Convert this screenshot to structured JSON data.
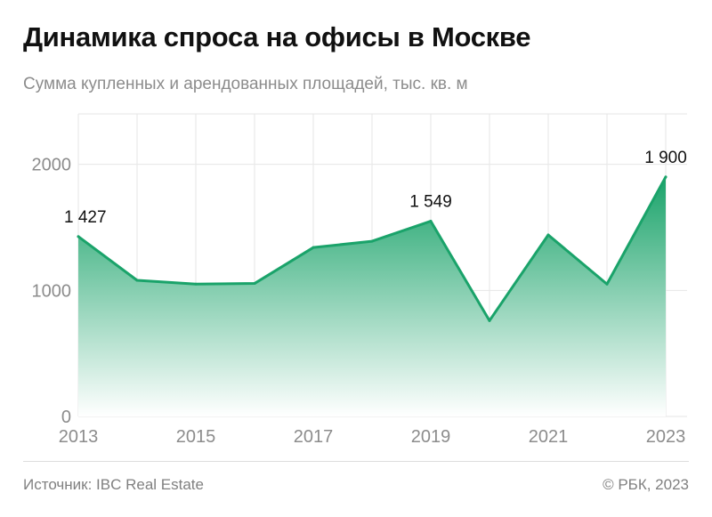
{
  "header": {
    "title": "Динамика спроса на офисы в Москве",
    "subtitle": "Сумма купленных и арендованных площадей, тыс. кв. м"
  },
  "footer": {
    "source": "Источник: IBC Real Estate",
    "copyright": "© РБК, 2023"
  },
  "colors": {
    "line": "#1aa36a",
    "area_top": "#1aa36a",
    "area_bottom": "#ffffff",
    "grid": "#e6e6e6",
    "tick_text": "#8c8c8c",
    "label_text": "#111111"
  },
  "chart_data": {
    "type": "area",
    "x": [
      2013,
      2014,
      2015,
      2016,
      2017,
      2018,
      2019,
      2020,
      2021,
      2022,
      2023
    ],
    "values": [
      1427,
      1080,
      1050,
      1055,
      1340,
      1390,
      1549,
      760,
      1440,
      1050,
      1900
    ],
    "xticks": [
      "2013",
      "2015",
      "2017",
      "2019",
      "2021",
      "2023"
    ],
    "xtick_values": [
      2013,
      2015,
      2017,
      2019,
      2021,
      2023
    ],
    "yticks": [
      "0",
      "1000",
      "2000"
    ],
    "ytick_values": [
      0,
      1000,
      2000
    ],
    "ylim": [
      0,
      2400
    ],
    "xlim": [
      2013,
      2023
    ],
    "grid": true,
    "data_labels": [
      {
        "x": 2013,
        "text": "1 427"
      },
      {
        "x": 2019,
        "text": "1 549"
      },
      {
        "x": 2023,
        "text": "1 900"
      }
    ]
  }
}
